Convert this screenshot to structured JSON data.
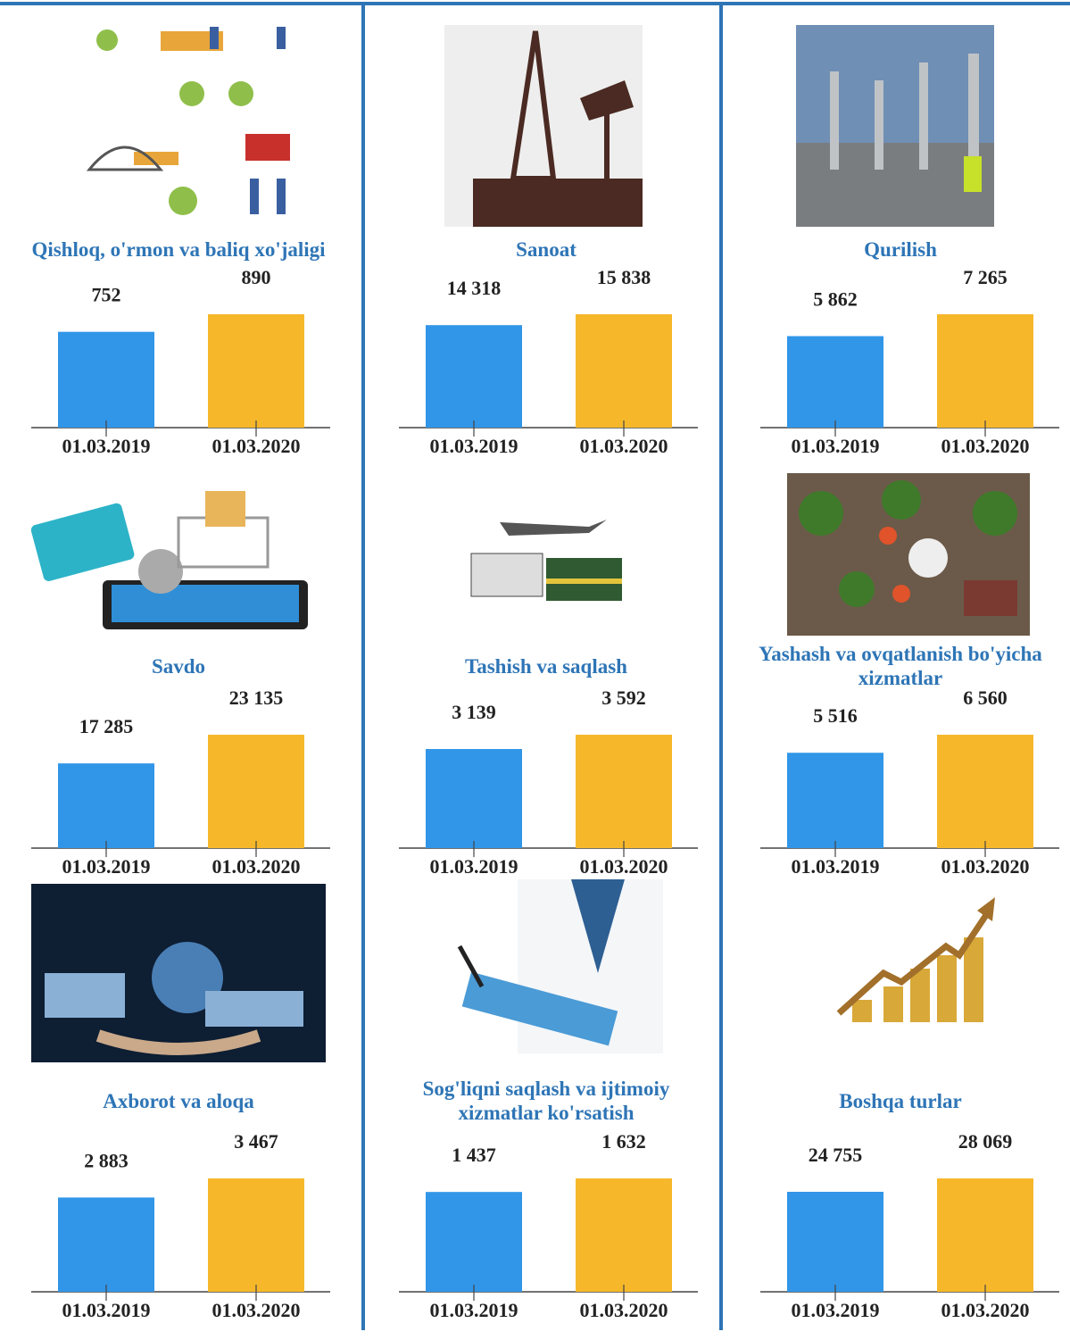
{
  "chart_data": [
    {
      "type": "bar",
      "title": "Qishloq, o'rmon va baliq xo'jaligi",
      "categories": [
        "01.03.2019",
        "01.03.2020"
      ],
      "values": [
        752,
        890
      ],
      "value_labels": [
        "752",
        "890"
      ],
      "colors": [
        "#3196e8",
        "#f6b82a"
      ]
    },
    {
      "type": "bar",
      "title": "Sanoat",
      "categories": [
        "01.03.2019",
        "01.03.2020"
      ],
      "values": [
        14318,
        15838
      ],
      "value_labels": [
        "14 318",
        "15 838"
      ],
      "colors": [
        "#3196e8",
        "#f6b82a"
      ]
    },
    {
      "type": "bar",
      "title": "Qurilish",
      "categories": [
        "01.03.2019",
        "01.03.2020"
      ],
      "values": [
        5862,
        7265
      ],
      "value_labels": [
        "5 862",
        "7 265"
      ],
      "colors": [
        "#3196e8",
        "#f6b82a"
      ]
    },
    {
      "type": "bar",
      "title": "Savdo",
      "categories": [
        "01.03.2019",
        "01.03.2020"
      ],
      "values": [
        17285,
        23135
      ],
      "value_labels": [
        "17 285",
        "23 135"
      ],
      "colors": [
        "#3196e8",
        "#f6b82a"
      ]
    },
    {
      "type": "bar",
      "title": "Tashish va saqlash",
      "categories": [
        "01.03.2019",
        "01.03.2020"
      ],
      "values": [
        3139,
        3592
      ],
      "value_labels": [
        "3 139",
        "3 592"
      ],
      "colors": [
        "#3196e8",
        "#f6b82a"
      ]
    },
    {
      "type": "bar",
      "title": "Yashash va ovqatlanish bo'yicha xizmatlar",
      "categories": [
        "01.03.2019",
        "01.03.2020"
      ],
      "values": [
        5516,
        6560
      ],
      "value_labels": [
        "5 516",
        "6 560"
      ],
      "colors": [
        "#3196e8",
        "#f6b82a"
      ]
    },
    {
      "type": "bar",
      "title": "Axborot va aloqa",
      "categories": [
        "01.03.2019",
        "01.03.2020"
      ],
      "values": [
        2883,
        3467
      ],
      "value_labels": [
        "2 883",
        "3 467"
      ],
      "colors": [
        "#3196e8",
        "#f6b82a"
      ]
    },
    {
      "type": "bar",
      "title": "Sog'liqni saqlash va ijtimoiy xizmatlar ko'rsatish",
      "categories": [
        "01.03.2019",
        "01.03.2020"
      ],
      "values": [
        1437,
        1632
      ],
      "value_labels": [
        "1 437",
        "1 632"
      ],
      "colors": [
        "#3196e8",
        "#f6b82a"
      ]
    },
    {
      "type": "bar",
      "title": "Boshqa turlar",
      "categories": [
        "01.03.2019",
        "01.03.2020"
      ],
      "values": [
        24755,
        28069
      ],
      "value_labels": [
        "24 755",
        "28 069"
      ],
      "colors": [
        "#3196e8",
        "#f6b82a"
      ]
    }
  ]
}
